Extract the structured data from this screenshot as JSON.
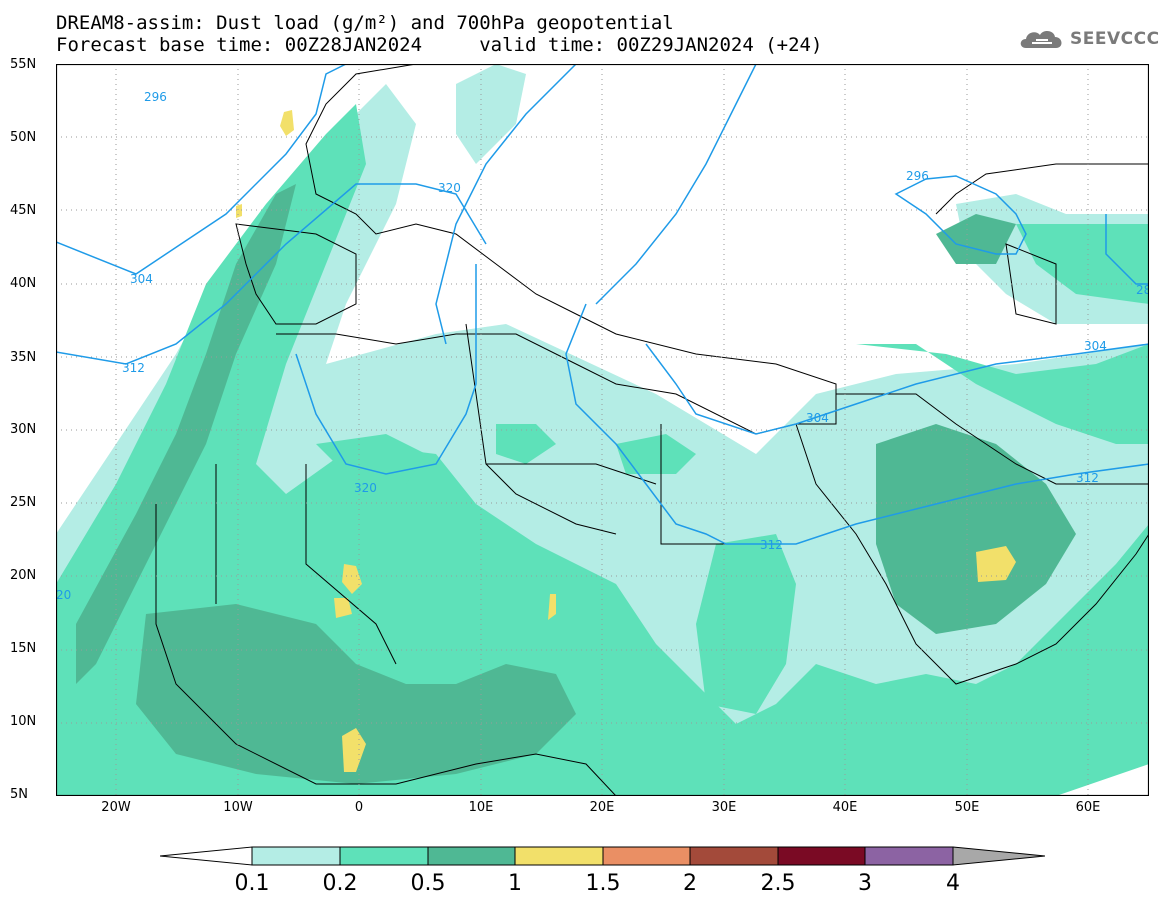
{
  "title": {
    "line1": "DREAM8-assim: Dust load (g/m²) and 700hPa geopotential",
    "line2": "Forecast base time: 00Z28JAN2024     valid time: 00Z29JAN2024 (+24)"
  },
  "logo": {
    "text": "SEEVCCC",
    "icon": "cloud-logo-icon"
  },
  "map": {
    "lon_range": [
      -25,
      65
    ],
    "lat_range": [
      5,
      55
    ],
    "lat_ticks": [
      "55N",
      "50N",
      "45N",
      "40N",
      "35N",
      "30N",
      "25N",
      "20N",
      "15N",
      "10N",
      "5N"
    ],
    "lon_ticks": [
      "20W",
      "10W",
      "0",
      "10E",
      "20E",
      "30E",
      "40E",
      "50E",
      "60E"
    ],
    "gridlines": "dotted",
    "contour_color": "#1f9be8",
    "contour_labels": [
      "296",
      "304",
      "312",
      "320",
      "320",
      "312",
      "304",
      "312",
      "296",
      "304",
      "20",
      "28"
    ]
  },
  "colorbar": {
    "levels": [
      "0.1",
      "0.2",
      "0.5",
      "1",
      "1.5",
      "2",
      "2.5",
      "3",
      "4"
    ],
    "colors": [
      "#ffffff",
      "#b4ede5",
      "#5ee1b9",
      "#4fb894",
      "#f2e06a",
      "#ea8f64",
      "#a34a3a",
      "#7a0a24",
      "#8c63a3",
      "#a8a8a8"
    ]
  }
}
